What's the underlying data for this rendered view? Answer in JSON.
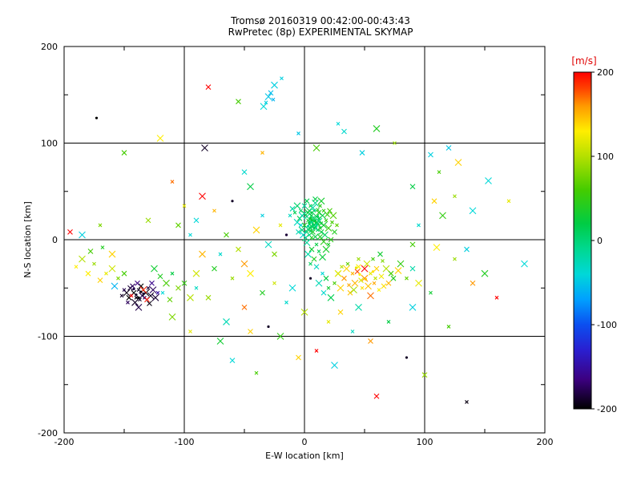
{
  "title": "Tromsø 20160319 00:42:00-00:43:43",
  "subtitle": "RwPretec (8p) EXPERIMENTAL SKYMAP",
  "chart_data": {
    "type": "scatter",
    "xlabel": "E-W location [km]",
    "ylabel": "N-S location [km]",
    "xlim": [
      -200,
      200
    ],
    "ylim": [
      -200,
      200
    ],
    "xticks": [
      -200,
      -100,
      0,
      100,
      200
    ],
    "yticks": [
      -200,
      -100,
      0,
      100,
      200
    ],
    "grid": true,
    "marker": "x",
    "colorbar": {
      "label": "[m/s]",
      "min": -200,
      "max": 200,
      "ticks": [
        200,
        100,
        0,
        -100,
        -200
      ],
      "stops": [
        [
          -200,
          "#000000"
        ],
        [
          -165,
          "#3c0080"
        ],
        [
          -130,
          "#2a1fd0"
        ],
        [
          -100,
          "#0b4ff0"
        ],
        [
          -70,
          "#00a0ff"
        ],
        [
          -40,
          "#00d8d8"
        ],
        [
          -10,
          "#00d890"
        ],
        [
          20,
          "#00cc44"
        ],
        [
          60,
          "#44cc00"
        ],
        [
          100,
          "#b4e000"
        ],
        [
          130,
          "#ffee00"
        ],
        [
          160,
          "#ff9900"
        ],
        [
          180,
          "#ff4400"
        ],
        [
          200,
          "#ff0000"
        ]
      ]
    },
    "points": [
      [
        2,
        8,
        10
      ],
      [
        5,
        12,
        20
      ],
      [
        8,
        15,
        5
      ],
      [
        3,
        20,
        30
      ],
      [
        6,
        25,
        15
      ],
      [
        10,
        18,
        25
      ],
      [
        12,
        22,
        10
      ],
      [
        0,
        15,
        40
      ],
      [
        -2,
        10,
        0
      ],
      [
        4,
        5,
        -10
      ],
      [
        7,
        8,
        35
      ],
      [
        9,
        3,
        20
      ],
      [
        11,
        10,
        15
      ],
      [
        6,
        18,
        -20
      ],
      [
        3,
        28,
        25
      ],
      [
        8,
        30,
        10
      ],
      [
        12,
        28,
        40
      ],
      [
        15,
        25,
        20
      ],
      [
        5,
        35,
        30
      ],
      [
        2,
        40,
        15
      ],
      [
        9,
        38,
        -10
      ],
      [
        13,
        35,
        45
      ],
      [
        -4,
        22,
        20
      ],
      [
        -6,
        18,
        -30
      ],
      [
        -3,
        30,
        10
      ],
      [
        0,
        35,
        -15
      ],
      [
        16,
        15,
        30
      ],
      [
        18,
        20,
        50
      ],
      [
        14,
        8,
        25
      ],
      [
        17,
        5,
        10
      ],
      [
        10,
        -5,
        20
      ],
      [
        6,
        -10,
        30
      ],
      [
        3,
        -15,
        -20
      ],
      [
        12,
        -12,
        15
      ],
      [
        8,
        -20,
        40
      ],
      [
        15,
        -18,
        25
      ],
      [
        5,
        -25,
        10
      ],
      [
        10,
        -28,
        -30
      ],
      [
        18,
        -10,
        35
      ],
      [
        20,
        -5,
        35
      ],
      [
        22,
        0,
        45
      ],
      [
        20,
        12,
        55
      ],
      [
        23,
        18,
        60
      ],
      [
        25,
        8,
        40
      ],
      [
        1,
        2,
        5
      ],
      [
        4,
        16,
        18
      ],
      [
        7,
        22,
        8
      ],
      [
        2,
        24,
        -5
      ],
      [
        5,
        9,
        28
      ],
      [
        9,
        12,
        -12
      ],
      [
        11,
        16,
        22
      ],
      [
        13,
        12,
        33
      ],
      [
        6,
        14,
        12
      ],
      [
        3,
        11,
        3
      ],
      [
        8,
        19,
        26
      ],
      [
        10,
        24,
        17
      ],
      [
        12,
        19,
        -8
      ],
      [
        14,
        17,
        29
      ],
      [
        4,
        30,
        21
      ],
      [
        7,
        33,
        -18
      ],
      [
        11,
        31,
        36
      ],
      [
        0,
        27,
        11
      ],
      [
        -2,
        25,
        -22
      ],
      [
        16,
        30,
        48
      ],
      [
        19,
        26,
        52
      ],
      [
        -1,
        5,
        -35
      ],
      [
        -3,
        15,
        -40
      ],
      [
        -5,
        8,
        -25
      ],
      [
        2,
        -3,
        -15
      ],
      [
        6,
        2,
        42
      ],
      [
        13,
        3,
        38
      ],
      [
        16,
        -2,
        44
      ],
      [
        -8,
        28,
        15
      ],
      [
        -10,
        32,
        -20
      ],
      [
        24,
        25,
        65
      ],
      [
        27,
        15,
        70
      ],
      [
        21,
        30,
        58
      ],
      [
        -6,
        35,
        5
      ],
      [
        -12,
        25,
        -30
      ],
      [
        9,
        42,
        20
      ],
      [
        14,
        40,
        33
      ],
      [
        15,
        -35,
        -40
      ],
      [
        18,
        -40,
        20
      ],
      [
        12,
        -45,
        -25
      ],
      [
        20,
        -50,
        30
      ],
      [
        16,
        -55,
        -35
      ],
      [
        22,
        -60,
        15
      ],
      [
        25,
        -45,
        60
      ],
      [
        28,
        -35,
        80
      ],
      [
        4,
        18,
        15,
        "d"
      ],
      [
        6,
        20,
        25,
        "d"
      ],
      [
        8,
        12,
        18,
        "d"
      ],
      [
        10,
        15,
        -10,
        "d"
      ],
      [
        5,
        22,
        30,
        "d"
      ],
      [
        7,
        16,
        8,
        "d"
      ],
      [
        9,
        20,
        22,
        "d"
      ],
      [
        11,
        24,
        12,
        "d"
      ],
      [
        3,
        14,
        -15,
        "d"
      ],
      [
        6,
        28,
        20,
        "d"
      ],
      [
        -138,
        -52,
        -190
      ],
      [
        -142,
        -55,
        -200
      ],
      [
        -135,
        -58,
        -180
      ],
      [
        -140,
        -60,
        -195
      ],
      [
        -145,
        -50,
        -185
      ],
      [
        -132,
        -55,
        -200
      ],
      [
        -137,
        -62,
        -190
      ],
      [
        -143,
        -48,
        -175
      ],
      [
        -148,
        -55,
        -195
      ],
      [
        -130,
        -50,
        -185
      ],
      [
        -136,
        -48,
        -200
      ],
      [
        -141,
        -65,
        -190
      ],
      [
        -133,
        -60,
        -170
      ],
      [
        -146,
        -60,
        -200
      ],
      [
        -128,
        -58,
        -190
      ],
      [
        -150,
        -52,
        -180
      ],
      [
        -139,
        -45,
        -165
      ],
      [
        -134,
        -52,
        190
      ],
      [
        -144,
        -58,
        200
      ],
      [
        -131,
        -62,
        195
      ],
      [
        -126,
        -52,
        -175
      ],
      [
        -152,
        -58,
        -190
      ],
      [
        -127,
        -45,
        -160
      ],
      [
        -124,
        -60,
        -185
      ],
      [
        -147,
        -65,
        -175
      ],
      [
        -129,
        -66,
        -195
      ],
      [
        -138,
        -70,
        -180
      ],
      [
        -122,
        -55,
        -150
      ],
      [
        -136,
        -54,
        -195,
        "d"
      ],
      [
        -140,
        -57,
        -190,
        "d"
      ],
      [
        -134,
        -56,
        -185,
        "d"
      ],
      [
        -138,
        -60,
        -200,
        "d"
      ],
      [
        -142,
        -51,
        -180,
        "d"
      ],
      [
        -165,
        -35,
        120
      ],
      [
        -170,
        -42,
        140
      ],
      [
        -160,
        -30,
        110
      ],
      [
        -175,
        -25,
        90
      ],
      [
        -180,
        -35,
        130
      ],
      [
        -185,
        -20,
        100
      ],
      [
        -155,
        -40,
        80
      ],
      [
        -150,
        -35,
        60
      ],
      [
        -158,
        -48,
        -60
      ],
      [
        -190,
        -28,
        130
      ],
      [
        -178,
        -12,
        60
      ],
      [
        -160,
        -15,
        140
      ],
      [
        -168,
        -8,
        40
      ],
      [
        -195,
        8,
        200
      ],
      [
        -185,
        5,
        -45
      ],
      [
        -170,
        15,
        80
      ],
      [
        -120,
        -38,
        40
      ],
      [
        -115,
        -45,
        60
      ],
      [
        -110,
        -35,
        20
      ],
      [
        -105,
        -50,
        80
      ],
      [
        -125,
        -30,
        30
      ],
      [
        -118,
        -55,
        -40
      ],
      [
        -100,
        -45,
        50
      ],
      [
        -95,
        -60,
        100
      ],
      [
        -90,
        -50,
        -30
      ],
      [
        -112,
        -62,
        70
      ],
      [
        -30,
        -5,
        -30
      ],
      [
        -20,
        15,
        120
      ],
      [
        -25,
        -15,
        80
      ],
      [
        -40,
        10,
        140
      ],
      [
        -35,
        25,
        -45
      ],
      [
        -55,
        -10,
        100
      ],
      [
        -50,
        -25,
        160
      ],
      [
        -70,
        -15,
        -35
      ],
      [
        -65,
        5,
        60
      ],
      [
        -45,
        -35,
        130
      ],
      [
        -60,
        -40,
        90
      ],
      [
        -75,
        -30,
        40
      ],
      [
        -85,
        -15,
        150
      ],
      [
        -95,
        5,
        -40
      ],
      [
        -105,
        15,
        70
      ],
      [
        -90,
        -35,
        110
      ],
      [
        -15,
        5,
        -185,
        "d"
      ],
      [
        5,
        -40,
        -190,
        "d"
      ],
      [
        35,
        -30,
        140
      ],
      [
        40,
        -35,
        150
      ],
      [
        45,
        -28,
        130
      ],
      [
        50,
        -40,
        160
      ],
      [
        55,
        -35,
        120
      ],
      [
        60,
        -30,
        140
      ],
      [
        42,
        -45,
        150
      ],
      [
        48,
        -50,
        135
      ],
      [
        38,
        -55,
        145
      ],
      [
        52,
        -25,
        110
      ],
      [
        58,
        -45,
        155
      ],
      [
        64,
        -38,
        125
      ],
      [
        68,
        -30,
        100
      ],
      [
        45,
        -20,
        90
      ],
      [
        33,
        -40,
        160
      ],
      [
        30,
        -50,
        140
      ],
      [
        62,
        -52,
        130
      ],
      [
        70,
        -45,
        150
      ],
      [
        55,
        -58,
        170
      ],
      [
        36,
        -25,
        70
      ],
      [
        44,
        -33,
        180
      ],
      [
        50,
        -30,
        200
      ],
      [
        65,
        -22,
        80
      ],
      [
        72,
        -35,
        60
      ],
      [
        28,
        -35,
        120
      ],
      [
        31,
        -28,
        100
      ],
      [
        47,
        -42,
        115
      ],
      [
        53,
        -48,
        145
      ],
      [
        59,
        -40,
        105
      ],
      [
        66,
        -48,
        135
      ],
      [
        41,
        -52,
        95
      ],
      [
        37,
        -47,
        155
      ],
      [
        74,
        -40,
        40
      ],
      [
        78,
        -32,
        140
      ],
      [
        57,
        -20,
        55
      ],
      [
        63,
        -15,
        30
      ],
      [
        80,
        -25,
        50
      ],
      [
        85,
        -40,
        70
      ],
      [
        90,
        -30,
        -20
      ],
      [
        95,
        -45,
        120
      ],
      [
        46,
        -36,
        130,
        "d"
      ],
      [
        51,
        -41,
        145,
        "d"
      ],
      [
        43,
        -29,
        120,
        "d"
      ],
      [
        57,
        -33,
        135,
        "d"
      ],
      [
        -80,
        158,
        200
      ],
      [
        -30,
        148,
        -50
      ],
      [
        -32,
        142,
        -45
      ],
      [
        -28,
        152,
        -55
      ],
      [
        -34,
        138,
        -40
      ],
      [
        -26,
        145,
        -60
      ],
      [
        -55,
        143,
        60
      ],
      [
        -25,
        160,
        -45
      ],
      [
        -19,
        167,
        -45
      ],
      [
        -173,
        126,
        -200,
        "d"
      ],
      [
        -83,
        95,
        -190
      ],
      [
        28,
        120,
        -40
      ],
      [
        33,
        112,
        -35
      ],
      [
        60,
        115,
        40
      ],
      [
        75,
        100,
        90
      ],
      [
        120,
        95,
        -50
      ],
      [
        128,
        80,
        140
      ],
      [
        112,
        70,
        60
      ],
      [
        105,
        88,
        -45
      ],
      [
        153,
        61,
        -40
      ],
      [
        170,
        40,
        120
      ],
      [
        -150,
        90,
        60
      ],
      [
        -120,
        105,
        130
      ],
      [
        -35,
        90,
        150
      ],
      [
        -50,
        70,
        -35
      ],
      [
        -45,
        55,
        20
      ],
      [
        -110,
        60,
        170
      ],
      [
        -130,
        20,
        90
      ],
      [
        -60,
        40,
        -190,
        "d"
      ],
      [
        -75,
        30,
        150
      ],
      [
        -90,
        20,
        -40
      ],
      [
        -85,
        45,
        200
      ],
      [
        -100,
        35,
        120
      ],
      [
        48,
        90,
        -45
      ],
      [
        10,
        95,
        60
      ],
      [
        -5,
        110,
        -50
      ],
      [
        90,
        55,
        20
      ],
      [
        140,
        30,
        -40
      ],
      [
        125,
        45,
        90
      ],
      [
        90,
        -5,
        60
      ],
      [
        110,
        -8,
        130
      ],
      [
        125,
        -20,
        90
      ],
      [
        140,
        -45,
        160
      ],
      [
        150,
        -35,
        40
      ],
      [
        160,
        -60,
        200
      ],
      [
        135,
        -10,
        -45
      ],
      [
        115,
        25,
        50
      ],
      [
        95,
        15,
        -35
      ],
      [
        108,
        40,
        140
      ],
      [
        183,
        -25,
        -40
      ],
      [
        10,
        -115,
        200
      ],
      [
        -5,
        -122,
        140
      ],
      [
        25,
        -130,
        -45
      ],
      [
        -40,
        -138,
        60
      ],
      [
        60,
        -162,
        200
      ],
      [
        85,
        -122,
        -190,
        "d"
      ],
      [
        135,
        -168,
        -195
      ],
      [
        100,
        -140,
        90
      ],
      [
        -70,
        -105,
        30
      ],
      [
        -95,
        -95,
        120
      ],
      [
        -60,
        -125,
        -40
      ],
      [
        -20,
        -100,
        50
      ],
      [
        40,
        -95,
        -30
      ],
      [
        55,
        -105,
        160
      ],
      [
        -110,
        -80,
        80
      ],
      [
        70,
        -85,
        20
      ],
      [
        -30,
        -90,
        -190,
        "d"
      ],
      [
        0,
        -75,
        100
      ],
      [
        -15,
        -65,
        -35
      ],
      [
        30,
        -75,
        140
      ],
      [
        90,
        -70,
        -45
      ],
      [
        120,
        -90,
        60
      ],
      [
        -50,
        -70,
        170
      ],
      [
        -65,
        -85,
        -25
      ],
      [
        105,
        -55,
        30
      ],
      [
        -80,
        -60,
        90
      ],
      [
        -10,
        -50,
        -40
      ],
      [
        -25,
        -45,
        110
      ],
      [
        -35,
        -55,
        40
      ],
      [
        45,
        -70,
        -20
      ],
      [
        20,
        -85,
        120
      ],
      [
        -45,
        -95,
        140
      ]
    ]
  }
}
